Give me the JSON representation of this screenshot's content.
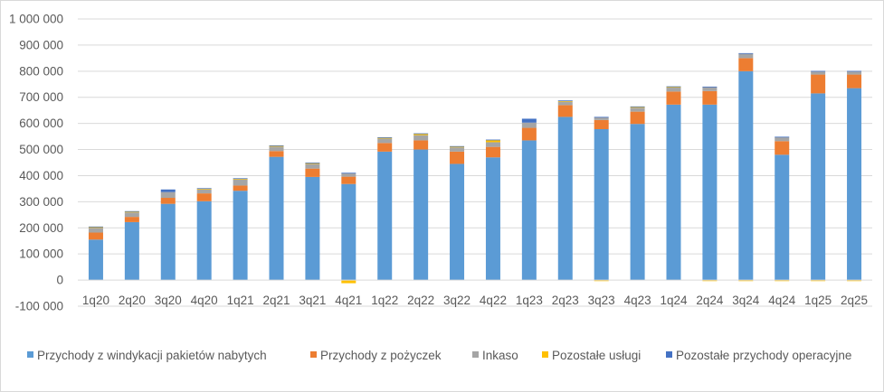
{
  "chart_data": {
    "type": "bar",
    "stacked": true,
    "categories": [
      "1q20",
      "2q20",
      "3q20",
      "4q20",
      "1q21",
      "2q21",
      "3q21",
      "4q21",
      "1q22",
      "2q22",
      "3q22",
      "4q22",
      "1q23",
      "2q23",
      "3q23",
      "4q23",
      "1q24",
      "2q24",
      "3q24",
      "4q24",
      "1q25",
      "2q25"
    ],
    "ylim": [
      -100000,
      1000000
    ],
    "yticks": [
      -100000,
      0,
      100000,
      200000,
      300000,
      400000,
      500000,
      600000,
      700000,
      800000,
      900000,
      1000000
    ],
    "ytick_labels": [
      "-100 000",
      "0",
      "100 000",
      "200 000",
      "300 000",
      "400 000",
      "500 000",
      "600 000",
      "700 000",
      "800 000",
      "900 000",
      "1 000 000"
    ],
    "grid": true,
    "legend_position": "bottom",
    "series": [
      {
        "name": "Przychody z windykacji pakietów nabytych",
        "color": "#5b9bd5",
        "values": [
          155000,
          222000,
          292000,
          302000,
          342000,
          472000,
          395000,
          368000,
          492000,
          500000,
          445000,
          470000,
          535000,
          625000,
          578000,
          598000,
          672000,
          672000,
          800000,
          480000,
          715000,
          735000
        ]
      },
      {
        "name": "Przychody z pożyczek",
        "color": "#ed7d31",
        "values": [
          27000,
          20000,
          23000,
          30000,
          20000,
          22000,
          32000,
          28000,
          33000,
          35000,
          47000,
          40000,
          48000,
          45000,
          35000,
          47000,
          50000,
          52000,
          50000,
          52000,
          72000,
          52000
        ]
      },
      {
        "name": "Inkaso",
        "color": "#a5a5a5",
        "values": [
          18000,
          17000,
          22000,
          15000,
          23000,
          17000,
          18000,
          13000,
          17000,
          20000,
          16000,
          18000,
          20000,
          13000,
          10000,
          15000,
          15000,
          15000,
          17000,
          15000,
          12000,
          12000
        ]
      },
      {
        "name": "Pozostałe usługi",
        "color": "#ffc000",
        "values": [
          3000,
          3000,
          0,
          3000,
          3000,
          3000,
          3000,
          -12000,
          3000,
          5000,
          3000,
          8000,
          0,
          3000,
          -4000,
          3000,
          3000,
          -4000,
          -4000,
          -4000,
          -4000,
          -4000
        ]
      },
      {
        "name": "Pozostałe przychody operacyjne",
        "color": "#4472c4",
        "values": [
          2000,
          2000,
          10000,
          2000,
          2000,
          2000,
          2000,
          2000,
          2000,
          2000,
          2000,
          2000,
          15000,
          2000,
          2000,
          2000,
          2000,
          2000,
          2000,
          2000,
          2000,
          2000
        ]
      }
    ]
  }
}
